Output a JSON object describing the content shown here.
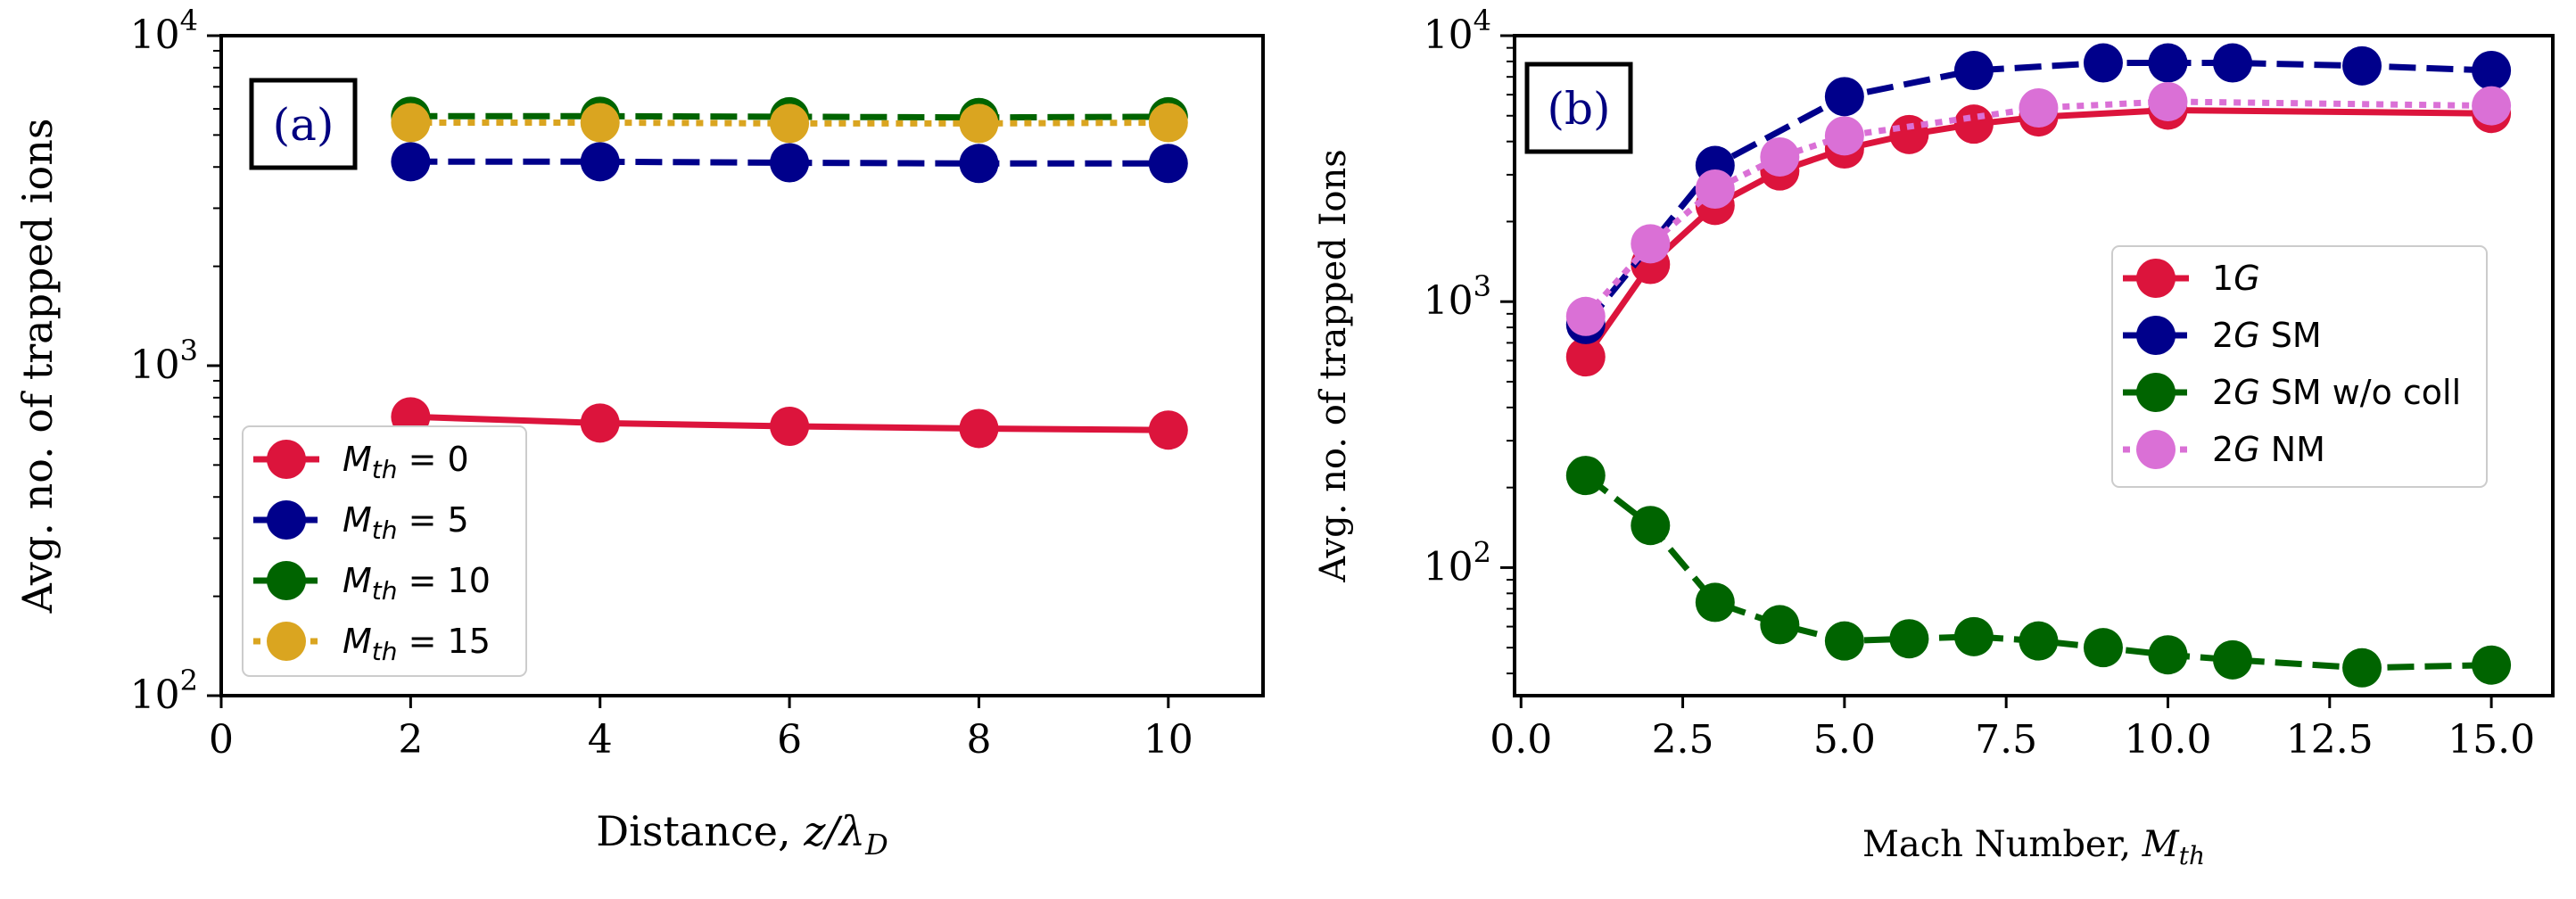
{
  "chart_data": [
    {
      "type": "line",
      "panel_label": "(a)",
      "xlabel": "Distance, z/λ_D",
      "xlabel_parts": [
        "Distance, ",
        "z/λ",
        "D"
      ],
      "ylabel": "Avg. no. of trapped ions",
      "yscale": "log",
      "xlim": [
        0,
        11
      ],
      "ylim": [
        100,
        10000
      ],
      "xticks": [
        0,
        2,
        4,
        6,
        8,
        10
      ],
      "yticks": [
        {
          "base": "10",
          "exp": "2"
        },
        {
          "base": "10",
          "exp": "3"
        },
        {
          "base": "10",
          "exp": "4"
        }
      ],
      "legend_position": "lower-left",
      "x": [
        2,
        4,
        6,
        8,
        10
      ],
      "series": [
        {
          "name": "M_th = 0",
          "label_parts": [
            "M",
            "th",
            " = 0"
          ],
          "color": "#dc143c",
          "linestyle": "solid",
          "values": [
            700,
            670,
            655,
            645,
            638
          ]
        },
        {
          "name": "M_th = 5",
          "label_parts": [
            "M",
            "th",
            " = 5"
          ],
          "color": "#00008b",
          "linestyle": "dashed",
          "values": [
            4150,
            4150,
            4120,
            4100,
            4100
          ]
        },
        {
          "name": "M_th = 10",
          "label_parts": [
            "M",
            "th",
            " = 10"
          ],
          "color": "#006400",
          "linestyle": "dashed",
          "values": [
            5700,
            5700,
            5680,
            5650,
            5680
          ]
        },
        {
          "name": "M_th = 15",
          "label_parts": [
            "M",
            "th",
            " = 15"
          ],
          "color": "#daa520",
          "linestyle": "dotted",
          "values": [
            5450,
            5450,
            5420,
            5420,
            5450
          ]
        }
      ]
    },
    {
      "type": "line",
      "panel_label": "(b)",
      "xlabel": "Mach Number, M_th",
      "xlabel_parts": [
        "Mach Number, ",
        "M",
        "th"
      ],
      "ylabel": "Avg. no. of trapped Ions",
      "yscale": "log",
      "xlim": [
        -0.1,
        15.95
      ],
      "ylim": [
        33,
        10000
      ],
      "xticks": [
        "0.0",
        "2.5",
        "5.0",
        "7.5",
        "10.0",
        "12.5",
        "15.0"
      ],
      "yticks": [
        {
          "base": "10",
          "exp": "2"
        },
        {
          "base": "10",
          "exp": "3"
        },
        {
          "base": "10",
          "exp": "4"
        }
      ],
      "legend_position": "center-right",
      "series": [
        {
          "name": "1G",
          "label_parts": [
            "1",
            "G",
            ""
          ],
          "color": "#dc143c",
          "linestyle": "solid",
          "x": [
            1,
            2,
            3,
            4,
            5,
            6,
            7,
            8,
            10,
            15
          ],
          "values": [
            620,
            1380,
            2300,
            3100,
            3750,
            4250,
            4650,
            4950,
            5250,
            5100
          ]
        },
        {
          "name": "2G SM",
          "label_parts": [
            "2",
            "G",
            " SM"
          ],
          "color": "#00008b",
          "linestyle": "dashed",
          "x": [
            1,
            3,
            5,
            7,
            9,
            10,
            11,
            13,
            15
          ],
          "values": [
            820,
            3250,
            5900,
            7400,
            7900,
            7900,
            7900,
            7700,
            7400
          ]
        },
        {
          "name": "2G SM w/o coll",
          "label_parts": [
            "2",
            "G",
            " SM w/o coll"
          ],
          "color": "#006400",
          "linestyle": "dashed",
          "x": [
            1,
            2,
            3,
            4,
            5,
            6,
            7,
            8,
            9,
            10,
            11,
            13,
            15
          ],
          "values": [
            222,
            144,
            74,
            61,
            53,
            54,
            55,
            53,
            50,
            47,
            45,
            42,
            43
          ]
        },
        {
          "name": "2G NM",
          "label_parts": [
            "2",
            "G",
            " NM"
          ],
          "color": "#da70d6",
          "linestyle": "dotted",
          "x": [
            1,
            2,
            3,
            4,
            5,
            8,
            10,
            15
          ],
          "values": [
            880,
            1650,
            2650,
            3500,
            4200,
            5350,
            5650,
            5450
          ]
        }
      ]
    }
  ]
}
